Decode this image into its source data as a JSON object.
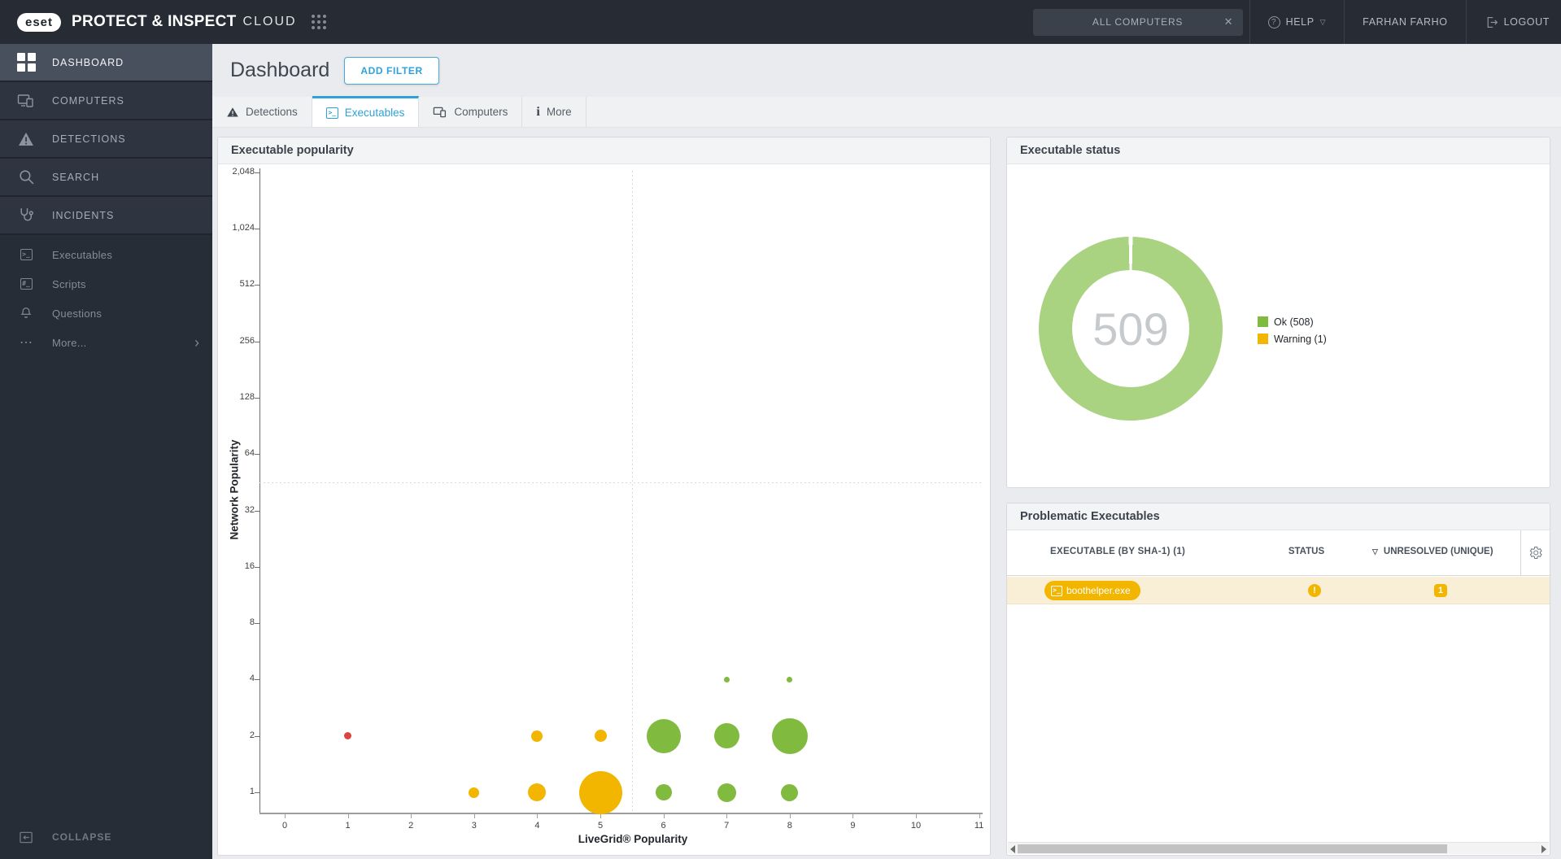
{
  "colors": {
    "accent": "#2da2d8",
    "green": "#80ba3e",
    "donut_green": "#a9d380",
    "yellow": "#f2b500",
    "red": "#dc453d",
    "row_highlight": "#f9efd6"
  },
  "topbar": {
    "logo": "eset",
    "product": "PROTECT & INSPECT",
    "product_suffix": "CLOUD",
    "scope": "ALL COMPUTERS",
    "help": "HELP",
    "user": "FARHAN FARHO",
    "logout": "LOGOUT"
  },
  "sidebar": {
    "items": [
      {
        "label": "DASHBOARD"
      },
      {
        "label": "COMPUTERS"
      },
      {
        "label": "DETECTIONS"
      },
      {
        "label": "SEARCH"
      },
      {
        "label": "INCIDENTS"
      },
      {
        "label": "Executables"
      },
      {
        "label": "Scripts"
      },
      {
        "label": "Questions"
      },
      {
        "label": "More..."
      }
    ],
    "collapse": "COLLAPSE"
  },
  "page": {
    "title": "Dashboard",
    "add_filter": "ADD FILTER",
    "tabs": [
      {
        "label": "Detections"
      },
      {
        "label": "Executables"
      },
      {
        "label": "Computers"
      },
      {
        "label": "More"
      }
    ]
  },
  "panels": {
    "popularity": {
      "title": "Executable popularity"
    },
    "status": {
      "title": "Executable status",
      "total": "509",
      "legend": [
        {
          "label": "Ok (508)",
          "color": "#80ba3e"
        },
        {
          "label": "Warning (1)",
          "color": "#f2b500"
        }
      ]
    },
    "problematic": {
      "title": "Problematic Executables",
      "columns": [
        "EXECUTABLE (BY SHA-1) (1)",
        "STATUS",
        "UNRESOLVED (UNIQUE)"
      ],
      "rows": [
        {
          "executable": "boothelper.exe",
          "status_icon": "!",
          "unresolved": "1"
        }
      ]
    }
  },
  "chart_data": [
    {
      "type": "bubble",
      "title": "Executable popularity",
      "xlabel": "LiveGrid® Popularity",
      "ylabel": "Network Popularity",
      "x_ticks": [
        0,
        1,
        2,
        3,
        4,
        5,
        6,
        7,
        8,
        9,
        10,
        11
      ],
      "y_ticks": [
        {
          "v": 1,
          "label": "1"
        },
        {
          "v": 2,
          "label": "2"
        },
        {
          "v": 4,
          "label": "4"
        },
        {
          "v": 8,
          "label": "8"
        },
        {
          "v": 16,
          "label": "16"
        },
        {
          "v": 32,
          "label": "32"
        },
        {
          "v": 64,
          "label": "64"
        },
        {
          "v": 128,
          "label": "128"
        },
        {
          "v": 256,
          "label": "256"
        },
        {
          "v": 512,
          "label": "512"
        },
        {
          "v": 1024,
          "label": "1,024"
        },
        {
          "v": 2048,
          "label": "2,048"
        }
      ],
      "y_scale": "log2",
      "xlim": [
        0,
        11.5
      ],
      "ylim": [
        1,
        2048
      ],
      "quadrant_dividers": {
        "x": 5.5,
        "y": 45
      },
      "points": [
        {
          "x": 1,
          "y": 2,
          "size": 9,
          "status": "risky",
          "color": "#dc453d"
        },
        {
          "x": 4,
          "y": 2,
          "size": 14,
          "status": "warning",
          "color": "#f2b500"
        },
        {
          "x": 5,
          "y": 2,
          "size": 15,
          "status": "warning",
          "color": "#f2b500"
        },
        {
          "x": 6,
          "y": 2,
          "size": 42,
          "status": "ok",
          "color": "#80ba3e"
        },
        {
          "x": 7,
          "y": 2,
          "size": 31,
          "status": "ok",
          "color": "#80ba3e"
        },
        {
          "x": 8,
          "y": 2,
          "size": 44,
          "status": "ok",
          "color": "#80ba3e"
        },
        {
          "x": 3,
          "y": 1,
          "size": 13,
          "status": "warning",
          "color": "#f2b500"
        },
        {
          "x": 4,
          "y": 1,
          "size": 22,
          "status": "warning",
          "color": "#f2b500"
        },
        {
          "x": 5,
          "y": 1,
          "size": 53,
          "status": "warning",
          "color": "#f2b500"
        },
        {
          "x": 6,
          "y": 1,
          "size": 20,
          "status": "ok",
          "color": "#80ba3e"
        },
        {
          "x": 7,
          "y": 1,
          "size": 23,
          "status": "ok",
          "color": "#80ba3e"
        },
        {
          "x": 8,
          "y": 1,
          "size": 21,
          "status": "ok",
          "color": "#80ba3e"
        },
        {
          "x": 7,
          "y": 4,
          "size": 7,
          "status": "ok",
          "color": "#80ba3e"
        },
        {
          "x": 8,
          "y": 4,
          "size": 7,
          "status": "ok",
          "color": "#80ba3e"
        }
      ]
    },
    {
      "type": "pie",
      "title": "Executable status",
      "labels": [
        "Ok (508)",
        "Warning (1)"
      ],
      "values": [
        508,
        1
      ],
      "colors": [
        "#a9d380",
        "#f2b500"
      ],
      "center_total": "509",
      "legend_position": "right"
    }
  ]
}
